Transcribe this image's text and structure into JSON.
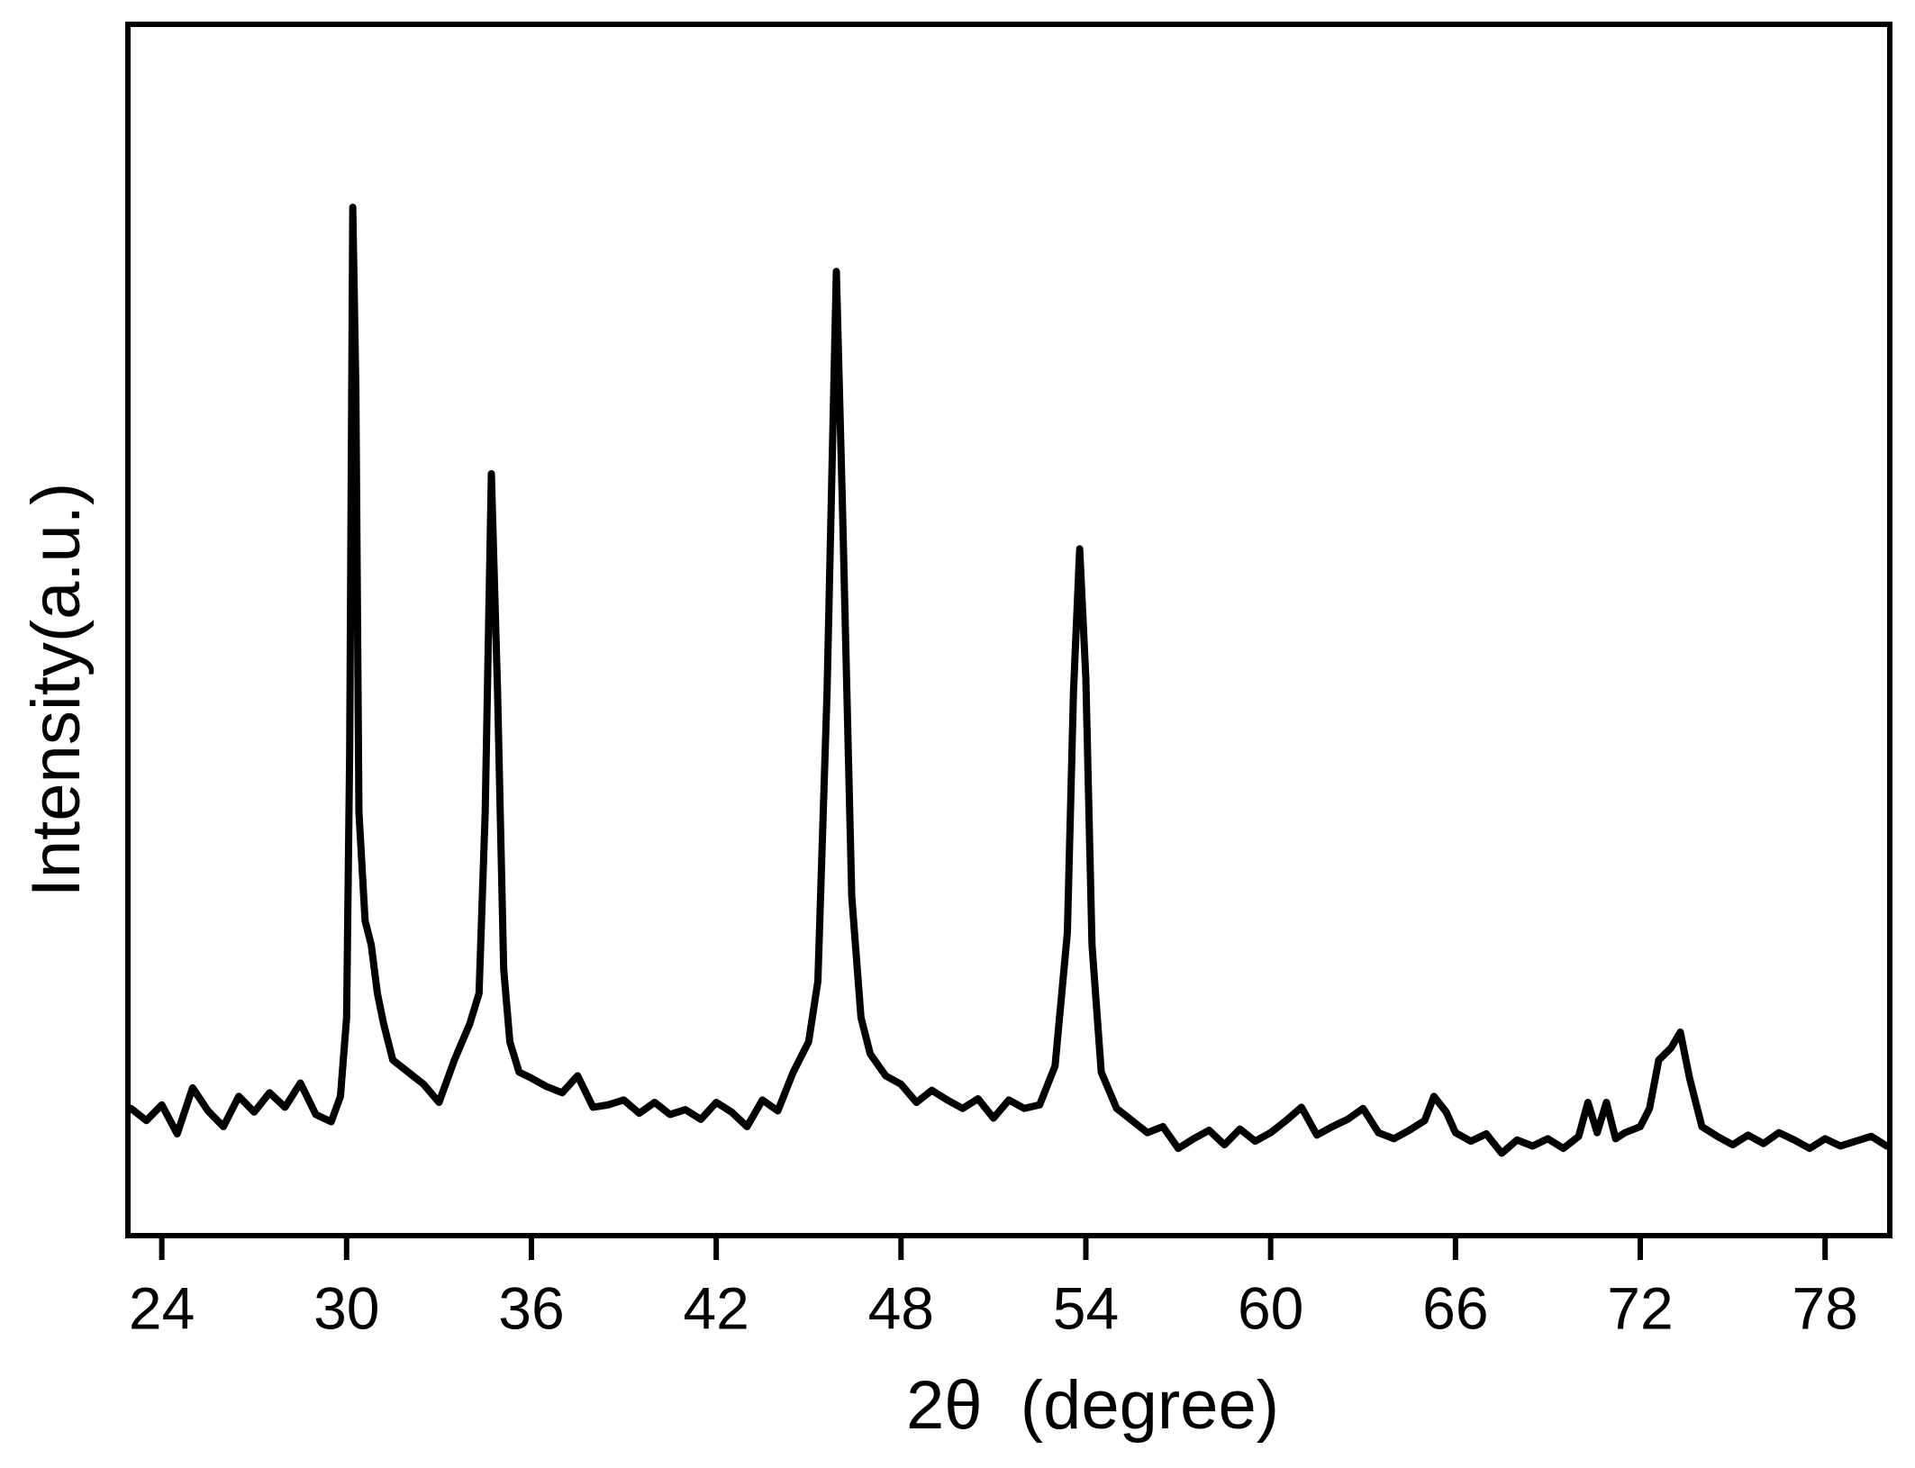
{
  "chart_data": {
    "type": "line",
    "x_label": "2θ  (degree)",
    "y_label": "Intensity(a.u.)",
    "xlim": [
      22.9,
      80.1
    ],
    "ylim": [
      0,
      100
    ],
    "xticks": [
      24,
      30,
      36,
      42,
      48,
      54,
      60,
      66,
      72,
      78
    ],
    "grid": false,
    "series": [
      {
        "color": "#000000",
        "x": [
          23.0,
          23.5,
          24.0,
          24.5,
          25.0,
          25.5,
          26.0,
          26.5,
          27.0,
          27.5,
          28.0,
          28.5,
          29.0,
          29.5,
          29.8,
          30.0,
          30.1,
          30.2,
          30.3,
          30.4,
          30.6,
          30.8,
          31.0,
          31.2,
          31.5,
          32.0,
          32.5,
          33.0,
          33.5,
          34.0,
          34.3,
          34.5,
          34.7,
          34.9,
          35.1,
          35.3,
          35.6,
          36.0,
          36.5,
          37.0,
          37.5,
          38.0,
          38.5,
          39.0,
          39.5,
          40.0,
          40.5,
          41.0,
          41.5,
          42.0,
          42.5,
          43.0,
          43.5,
          44.0,
          44.5,
          45.0,
          45.3,
          45.6,
          45.9,
          46.1,
          46.4,
          46.7,
          47.0,
          47.5,
          48.0,
          48.5,
          49.0,
          49.5,
          50.0,
          50.5,
          51.0,
          51.5,
          52.0,
          52.5,
          53.0,
          53.4,
          53.6,
          53.8,
          54.0,
          54.2,
          54.5,
          55.0,
          55.5,
          56.0,
          56.5,
          57.0,
          57.5,
          58.0,
          58.5,
          59.0,
          59.5,
          60.0,
          60.5,
          61.0,
          61.5,
          62.0,
          62.5,
          63.0,
          63.5,
          64.0,
          64.5,
          65.0,
          65.3,
          65.7,
          66.0,
          66.5,
          67.0,
          67.5,
          68.0,
          68.5,
          69.0,
          69.5,
          70.0,
          70.3,
          70.6,
          70.9,
          71.2,
          71.5,
          72.0,
          72.3,
          72.6,
          73.0,
          73.3,
          73.6,
          74.0,
          74.5,
          75.0,
          75.5,
          76.0,
          76.5,
          77.0,
          77.5,
          78.0,
          78.5,
          79.0,
          79.5,
          80.0
        ],
        "values": [
          10.5,
          9.5,
          10.8,
          8.4,
          12.2,
          10.3,
          9.0,
          11.5,
          10.2,
          11.8,
          10.6,
          12.6,
          10.0,
          9.4,
          11.5,
          18,
          40,
          84.9,
          70,
          35,
          26,
          24,
          20,
          17.5,
          14.5,
          13.5,
          12.5,
          11.0,
          14.5,
          17.5,
          20,
          35,
          62.9,
          45,
          22,
          16,
          13.5,
          13.0,
          12.3,
          11.8,
          13.2,
          10.6,
          10.8,
          11.2,
          10.1,
          11.0,
          10.0,
          10.4,
          9.6,
          11.0,
          10.2,
          9.0,
          11.2,
          10.3,
          13.5,
          16,
          21,
          45,
          79.6,
          60,
          28,
          18,
          15.0,
          13.2,
          12.5,
          11.0,
          12.0,
          11.2,
          10.5,
          11.3,
          9.7,
          11.2,
          10.5,
          10.8,
          14,
          25,
          45,
          56.7,
          46,
          24,
          13.5,
          10.5,
          9.5,
          8.5,
          9.0,
          7.2,
          8.0,
          8.7,
          7.5,
          8.8,
          7.8,
          8.5,
          9.5,
          10.6,
          8.3,
          9.0,
          9.6,
          10.5,
          8.5,
          8.0,
          8.7,
          9.5,
          11.5,
          10.2,
          8.5,
          7.8,
          8.4,
          6.8,
          7.9,
          7.4,
          8.0,
          7.2,
          8.2,
          11.0,
          8.5,
          11.0,
          8.0,
          8.5,
          9.0,
          10.5,
          14.5,
          15.5,
          16.8,
          13,
          9.0,
          8.2,
          7.5,
          8.3,
          7.6,
          8.5,
          7.9,
          7.2,
          8.0,
          7.4,
          7.8,
          8.2,
          7.4
        ]
      }
    ]
  }
}
